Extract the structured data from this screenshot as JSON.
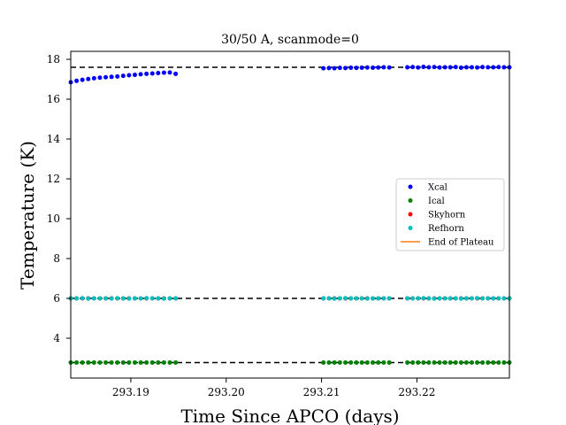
{
  "chart_data": {
    "type": "scatter",
    "title": "30/50 A, scanmode=0",
    "xlabel": "Time Since APCO (days)",
    "ylabel": "Temperature (K)",
    "xlim": [
      293.1837,
      293.2297
    ],
    "ylim": [
      2.0,
      18.4
    ],
    "xticks": [
      293.19,
      293.2,
      293.21,
      293.22
    ],
    "xtick_labels": [
      "293.19",
      "293.20",
      "293.21",
      "293.22"
    ],
    "yticks": [
      4,
      6,
      8,
      10,
      12,
      14,
      16,
      18
    ],
    "ytick_labels": [
      "4",
      "6",
      "8",
      "10",
      "12",
      "14",
      "16",
      "18"
    ],
    "grid": false,
    "legend_position": "center-right",
    "segments": [
      {
        "x_start": 293.1837,
        "x_end": 293.1947,
        "n": 19
      },
      {
        "x_start": 293.2102,
        "x_end": 293.2171,
        "n": 13
      },
      {
        "x_start": 293.219,
        "x_end": 293.2297,
        "n": 20
      }
    ],
    "series": [
      {
        "name": "Xcal",
        "color": "#0000ff",
        "marker": "dot",
        "values_by_segment": [
          [
            16.85,
            16.92,
            16.97,
            17.01,
            17.05,
            17.08,
            17.1,
            17.12,
            17.14,
            17.17,
            17.2,
            17.22,
            17.25,
            17.27,
            17.29,
            17.31,
            17.33,
            17.34,
            17.27
          ],
          [
            17.55,
            17.56,
            17.55,
            17.57,
            17.56,
            17.58,
            17.57,
            17.58,
            17.59,
            17.58,
            17.59,
            17.6,
            17.59
          ],
          [
            17.6,
            17.61,
            17.59,
            17.62,
            17.6,
            17.61,
            17.59,
            17.6,
            17.6,
            17.61,
            17.58,
            17.6,
            17.6,
            17.59,
            17.61,
            17.6,
            17.6,
            17.61,
            17.6,
            17.6
          ]
        ]
      },
      {
        "name": "Ical",
        "color": "#008000",
        "marker": "dot",
        "values_by_segment": [
          [
            2.78,
            2.78,
            2.78,
            2.78,
            2.78,
            2.78,
            2.78,
            2.78,
            2.78,
            2.78,
            2.78,
            2.78,
            2.78,
            2.78,
            2.78,
            2.78,
            2.78,
            2.78,
            2.78
          ],
          [
            2.78,
            2.78,
            2.78,
            2.78,
            2.78,
            2.78,
            2.78,
            2.78,
            2.78,
            2.78,
            2.78,
            2.78,
            2.78
          ],
          [
            2.78,
            2.78,
            2.78,
            2.78,
            2.78,
            2.78,
            2.78,
            2.78,
            2.78,
            2.78,
            2.78,
            2.78,
            2.78,
            2.78,
            2.78,
            2.78,
            2.78,
            2.78,
            2.78,
            2.78
          ]
        ]
      },
      {
        "name": "Skyhorn",
        "color": "#ff0000",
        "marker": "dot",
        "values_by_segment": [
          [
            6.0,
            6.0,
            6.0,
            6.0,
            6.0,
            6.0,
            6.0,
            6.0,
            6.0,
            6.0,
            6.0,
            6.0,
            6.0,
            6.0,
            6.0,
            6.0,
            6.0,
            6.0,
            6.0
          ],
          [
            6.0,
            6.0,
            6.0,
            6.0,
            6.0,
            6.0,
            6.0,
            6.0,
            6.0,
            6.0,
            6.0,
            6.0,
            6.0
          ],
          [
            6.0,
            6.0,
            6.0,
            6.0,
            6.0,
            6.0,
            6.0,
            6.0,
            6.0,
            6.0,
            6.0,
            6.0,
            6.0,
            6.0,
            6.0,
            6.0,
            6.0,
            6.0,
            6.0,
            6.0
          ]
        ]
      },
      {
        "name": "Refhorn",
        "color": "#00bfbf",
        "marker": "dot",
        "values_by_segment": [
          [
            6.0,
            6.0,
            6.01,
            5.99,
            6.0,
            6.0,
            6.0,
            5.99,
            6.01,
            6.0,
            5.99,
            6.0,
            6.0,
            6.01,
            6.0,
            6.0,
            5.99,
            6.0,
            6.0
          ],
          [
            6.0,
            6.0,
            5.99,
            6.0,
            6.01,
            6.0,
            6.0,
            6.0,
            5.99,
            6.0,
            6.0,
            6.0,
            6.0
          ],
          [
            6.0,
            6.0,
            6.0,
            6.01,
            6.0,
            5.99,
            6.0,
            6.0,
            6.0,
            6.0,
            5.99,
            6.0,
            6.0,
            6.01,
            6.0,
            6.0,
            6.0,
            6.0,
            6.0,
            6.0
          ]
        ]
      },
      {
        "name": "End of Plateau",
        "color": "#ff7f0e",
        "marker": "line",
        "values_by_segment": []
      }
    ],
    "reference_lines": [
      {
        "y": 17.6,
        "style": "dashed",
        "color": "#000000"
      },
      {
        "y": 6.0,
        "style": "dashed",
        "color": "#000000"
      },
      {
        "y": 2.78,
        "style": "dashed",
        "color": "#000000"
      }
    ]
  }
}
